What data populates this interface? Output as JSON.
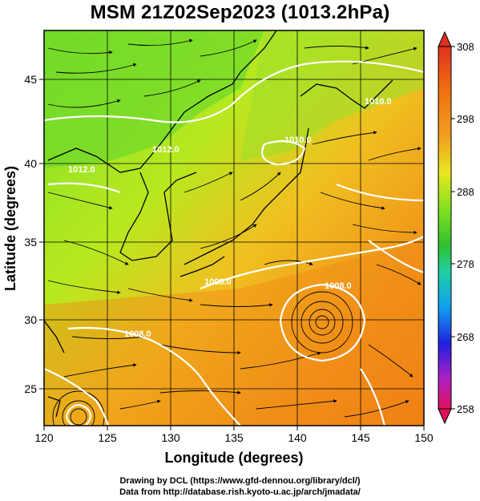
{
  "title": "MSM 21Z02Sep2023 (1013.2hPa)",
  "xlabel": "Longitude (degrees)",
  "ylabel": "Latitude  (degrees)",
  "x_ticks": [
    "120",
    "125",
    "130",
    "135",
    "140",
    "145",
    "150"
  ],
  "y_ticks": [
    "25",
    "30",
    "35",
    "40",
    "45"
  ],
  "colorbar": {
    "ticks": [
      "308",
      "298",
      "288",
      "278",
      "268",
      "258"
    ],
    "colors": [
      "#e0105a",
      "#b020c0",
      "#2020e0",
      "#10a0f0",
      "#20d0a0",
      "#30c030",
      "#80e020",
      "#e8e820",
      "#f0a020",
      "#f07010",
      "#e03020"
    ]
  },
  "contour_labels": [
    "1008.0",
    "1012.0",
    "1010.0",
    "1008.0",
    "1008.0",
    "1010.0",
    "1012.0"
  ],
  "footer": {
    "line1": "Drawing by DCL (https://www.gfd-dennou.org/library/dcl/)",
    "line2": "Data from http://database.rish.kyoto-u.ac.jp/arch/jmadata/"
  }
}
